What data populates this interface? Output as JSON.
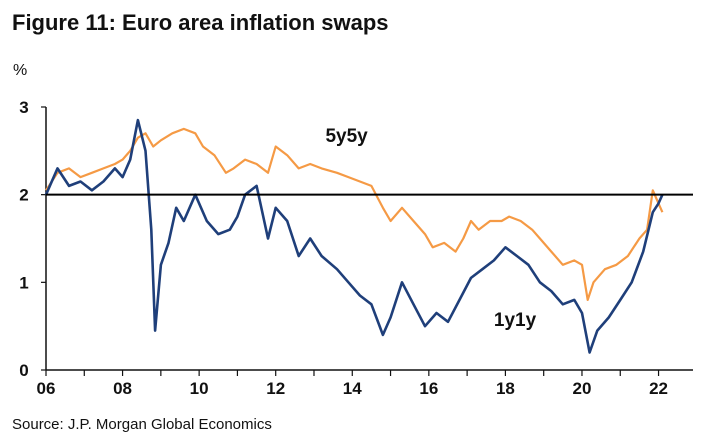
{
  "figure": {
    "title": "Figure 11: Euro area inflation swaps",
    "source": "Source: J.P. Morgan Global Economics"
  },
  "colors": {
    "series_5y5y": "#F59A45",
    "series_1y1y": "#1F3F7A",
    "axis": "#111111",
    "reference_line": "#000000"
  },
  "chart_data": {
    "type": "line",
    "title": "Figure 11: Euro area inflation swaps",
    "ylabel": "%",
    "xlabel": "",
    "xlim": [
      2006,
      2022.9
    ],
    "ylim": [
      0,
      3
    ],
    "x_ticks": [
      2006,
      2008,
      2010,
      2012,
      2014,
      2016,
      2018,
      2020,
      2022
    ],
    "x_tick_labels": [
      "06",
      "08",
      "10",
      "12",
      "14",
      "16",
      "18",
      "20",
      "22"
    ],
    "y_ticks": [
      0,
      1,
      2,
      3
    ],
    "y_tick_labels": [
      "0",
      "1",
      "2",
      "3"
    ],
    "reference_line": 2,
    "grid": false,
    "series": [
      {
        "name": "5y5y",
        "label": "5y5y",
        "color": "#F59A45",
        "points": [
          [
            2006.0,
            2.05
          ],
          [
            2006.3,
            2.25
          ],
          [
            2006.6,
            2.3
          ],
          [
            2006.9,
            2.2
          ],
          [
            2007.2,
            2.25
          ],
          [
            2007.5,
            2.3
          ],
          [
            2007.8,
            2.35
          ],
          [
            2008.0,
            2.4
          ],
          [
            2008.2,
            2.5
          ],
          [
            2008.4,
            2.65
          ],
          [
            2008.6,
            2.7
          ],
          [
            2008.8,
            2.55
          ],
          [
            2009.0,
            2.62
          ],
          [
            2009.3,
            2.7
          ],
          [
            2009.6,
            2.75
          ],
          [
            2009.9,
            2.7
          ],
          [
            2010.1,
            2.55
          ],
          [
            2010.4,
            2.45
          ],
          [
            2010.7,
            2.25
          ],
          [
            2010.9,
            2.3
          ],
          [
            2011.2,
            2.4
          ],
          [
            2011.5,
            2.35
          ],
          [
            2011.8,
            2.25
          ],
          [
            2012.0,
            2.55
          ],
          [
            2012.3,
            2.45
          ],
          [
            2012.6,
            2.3
          ],
          [
            2012.9,
            2.35
          ],
          [
            2013.2,
            2.3
          ],
          [
            2013.6,
            2.25
          ],
          [
            2013.9,
            2.2
          ],
          [
            2014.2,
            2.15
          ],
          [
            2014.5,
            2.1
          ],
          [
            2014.8,
            1.85
          ],
          [
            2015.0,
            1.7
          ],
          [
            2015.3,
            1.85
          ],
          [
            2015.6,
            1.7
          ],
          [
            2015.9,
            1.55
          ],
          [
            2016.1,
            1.4
          ],
          [
            2016.4,
            1.45
          ],
          [
            2016.7,
            1.35
          ],
          [
            2016.9,
            1.5
          ],
          [
            2017.1,
            1.7
          ],
          [
            2017.3,
            1.6
          ],
          [
            2017.6,
            1.7
          ],
          [
            2017.9,
            1.7
          ],
          [
            2018.1,
            1.75
          ],
          [
            2018.4,
            1.7
          ],
          [
            2018.7,
            1.6
          ],
          [
            2018.9,
            1.5
          ],
          [
            2019.2,
            1.35
          ],
          [
            2019.5,
            1.2
          ],
          [
            2019.8,
            1.25
          ],
          [
            2020.0,
            1.2
          ],
          [
            2020.15,
            0.8
          ],
          [
            2020.3,
            1.0
          ],
          [
            2020.6,
            1.15
          ],
          [
            2020.9,
            1.2
          ],
          [
            2021.2,
            1.3
          ],
          [
            2021.5,
            1.5
          ],
          [
            2021.7,
            1.6
          ],
          [
            2021.85,
            2.05
          ],
          [
            2022.0,
            1.9
          ],
          [
            2022.1,
            1.8
          ]
        ]
      },
      {
        "name": "1y1y",
        "label": "1y1y",
        "color": "#1F3F7A",
        "points": [
          [
            2006.0,
            2.0
          ],
          [
            2006.3,
            2.3
          ],
          [
            2006.6,
            2.1
          ],
          [
            2006.9,
            2.15
          ],
          [
            2007.2,
            2.05
          ],
          [
            2007.5,
            2.15
          ],
          [
            2007.8,
            2.3
          ],
          [
            2008.0,
            2.2
          ],
          [
            2008.2,
            2.4
          ],
          [
            2008.4,
            2.85
          ],
          [
            2008.6,
            2.5
          ],
          [
            2008.75,
            1.6
          ],
          [
            2008.85,
            0.45
          ],
          [
            2009.0,
            1.2
          ],
          [
            2009.2,
            1.45
          ],
          [
            2009.4,
            1.85
          ],
          [
            2009.6,
            1.7
          ],
          [
            2009.9,
            2.0
          ],
          [
            2010.2,
            1.7
          ],
          [
            2010.5,
            1.55
          ],
          [
            2010.8,
            1.6
          ],
          [
            2011.0,
            1.75
          ],
          [
            2011.2,
            2.0
          ],
          [
            2011.5,
            2.1
          ],
          [
            2011.8,
            1.5
          ],
          [
            2012.0,
            1.85
          ],
          [
            2012.3,
            1.7
          ],
          [
            2012.6,
            1.3
          ],
          [
            2012.9,
            1.5
          ],
          [
            2013.2,
            1.3
          ],
          [
            2013.6,
            1.15
          ],
          [
            2013.9,
            1.0
          ],
          [
            2014.2,
            0.85
          ],
          [
            2014.5,
            0.75
          ],
          [
            2014.8,
            0.4
          ],
          [
            2015.0,
            0.6
          ],
          [
            2015.3,
            1.0
          ],
          [
            2015.6,
            0.75
          ],
          [
            2015.9,
            0.5
          ],
          [
            2016.2,
            0.65
          ],
          [
            2016.5,
            0.55
          ],
          [
            2016.8,
            0.8
          ],
          [
            2017.1,
            1.05
          ],
          [
            2017.4,
            1.15
          ],
          [
            2017.7,
            1.25
          ],
          [
            2018.0,
            1.4
          ],
          [
            2018.3,
            1.3
          ],
          [
            2018.6,
            1.2
          ],
          [
            2018.9,
            1.0
          ],
          [
            2019.2,
            0.9
          ],
          [
            2019.5,
            0.75
          ],
          [
            2019.8,
            0.8
          ],
          [
            2020.0,
            0.65
          ],
          [
            2020.2,
            0.2
          ],
          [
            2020.4,
            0.45
          ],
          [
            2020.7,
            0.6
          ],
          [
            2021.0,
            0.8
          ],
          [
            2021.3,
            1.0
          ],
          [
            2021.6,
            1.35
          ],
          [
            2021.85,
            1.8
          ],
          [
            2022.0,
            1.9
          ],
          [
            2022.1,
            2.0
          ]
        ]
      }
    ],
    "annotations": [
      {
        "text": "5y5y",
        "series": "5y5y",
        "at": [
          2013.3,
          2.6
        ]
      },
      {
        "text": "1y1y",
        "series": "1y1y",
        "at": [
          2017.7,
          0.5
        ]
      }
    ]
  }
}
